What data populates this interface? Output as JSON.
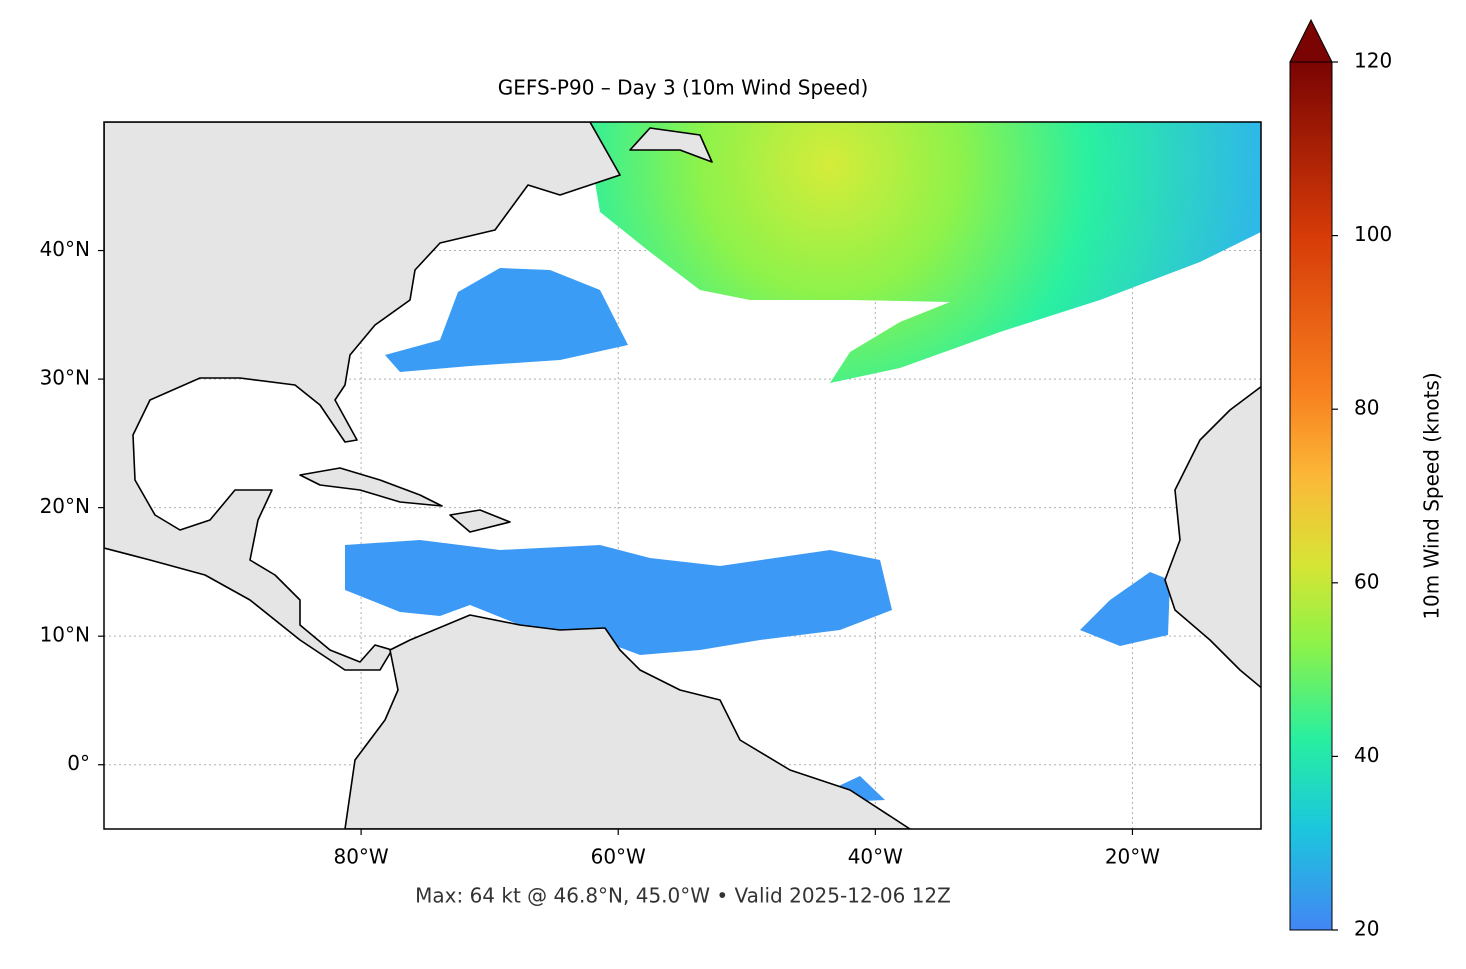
{
  "chart_data": {
    "type": "map",
    "title": "GEFS-P90 – Day 3 (10m Wind Speed)",
    "xlim": [
      -100,
      -10
    ],
    "ylim": [
      -5,
      50
    ],
    "xticks": [
      {
        "value": -80,
        "label": "80°W"
      },
      {
        "value": -60,
        "label": "60°W"
      },
      {
        "value": -40,
        "label": "40°W"
      },
      {
        "value": -20,
        "label": "20°W"
      }
    ],
    "yticks": [
      {
        "value": 0,
        "label": "0°"
      },
      {
        "value": 10,
        "label": "10°N"
      },
      {
        "value": 20,
        "label": "20°N"
      },
      {
        "value": 30,
        "label": "30°N"
      },
      {
        "value": 40,
        "label": "40°N"
      }
    ],
    "grid": true,
    "colorbar": {
      "label": "10m Wind Speed (knots)",
      "lim": [
        20,
        120
      ],
      "ticks": [
        20,
        40,
        60,
        80,
        100,
        120
      ],
      "extend": "max"
    },
    "footnote": "Max: 64 kt @ 46.8°N, 45.0°W • Valid 2025-12-06 12Z"
  }
}
